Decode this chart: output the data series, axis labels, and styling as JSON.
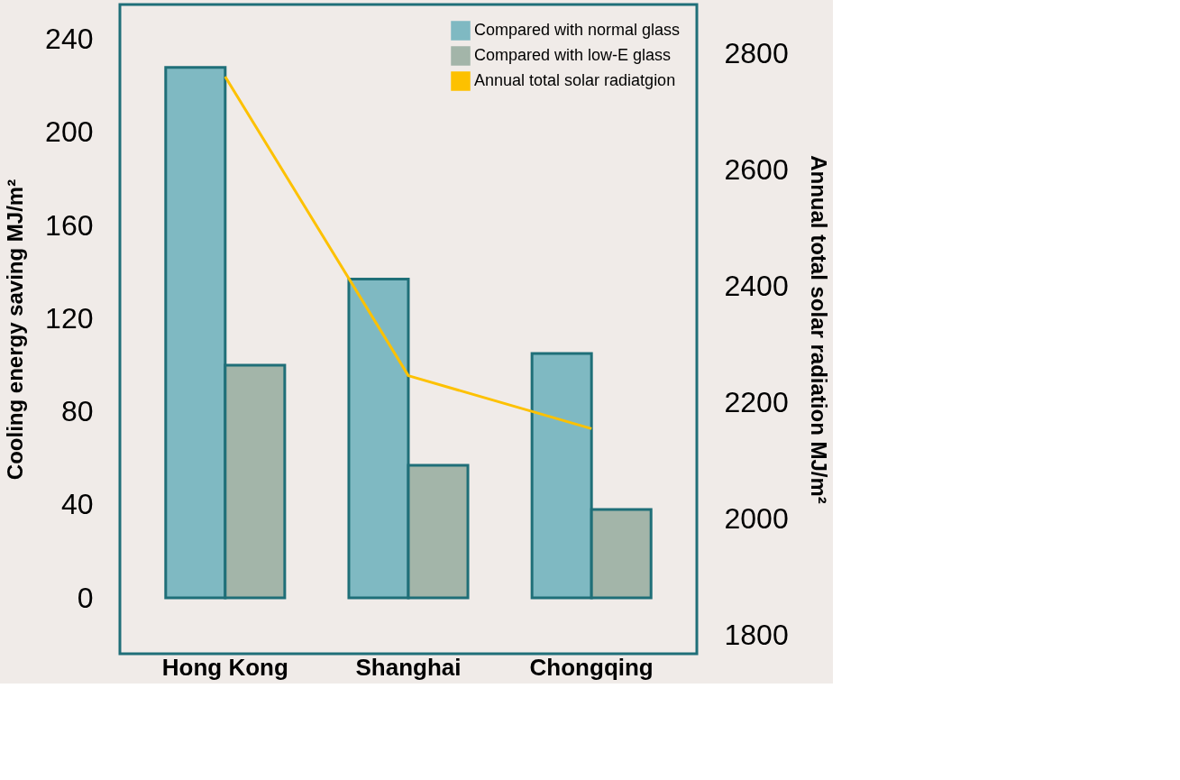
{
  "chart_data": {
    "type": "bar",
    "categories": [
      "Hong Kong",
      "Shanghai",
      "Chongqing"
    ],
    "series": [
      {
        "name": "Compared with normal glass",
        "color": "#7fb9c2",
        "values": [
          228,
          137,
          105
        ]
      },
      {
        "name": "Compared with low-E glass",
        "color": "#a3b5a9",
        "values": [
          100,
          57,
          38
        ]
      },
      {
        "name": "Annual total solar radiatgion",
        "color": "#fdc100",
        "type": "line",
        "axis": "y2",
        "values": [
          2760,
          2246,
          2155
        ]
      }
    ],
    "ylabel": "Cooling energy saving MJ/m²",
    "y2label": "Annual total solar radiation MJ/m²",
    "ylim": [
      -24,
      255
    ],
    "yticks": [
      0,
      40,
      80,
      120,
      160,
      200,
      240
    ],
    "y2lim": [
      1768,
      2884
    ],
    "y2ticks": [
      1800,
      2000,
      2200,
      2400,
      2600,
      2800
    ],
    "grid": false,
    "legend": "top right",
    "marker": "none"
  }
}
